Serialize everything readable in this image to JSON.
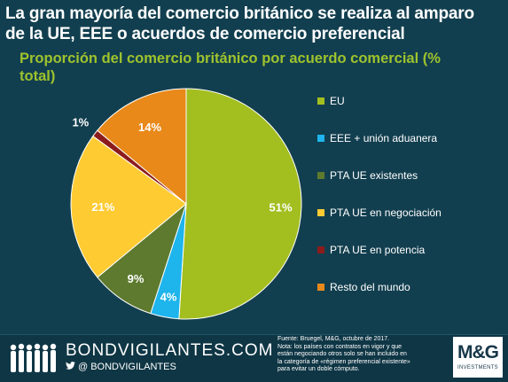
{
  "header": {
    "title_line1": "La gran mayoría del comercio británico se realiza al amparo",
    "title_line2": "de la UE, EEE o acuerdos de comercio preferencial",
    "subtitle_line1": "Proporción del comercio británico por acuerdo comercial (%",
    "subtitle_line2": "total)"
  },
  "chart_data": {
    "type": "pie",
    "title": "Proporción del comercio británico por acuerdo comercial (% total)",
    "categories": [
      "EU",
      "EEE + unión aduanera",
      "PTA UE existentes",
      "PTA UE en negociación",
      "PTA UE en potencia",
      "Resto del mundo"
    ],
    "values": [
      51,
      4,
      9,
      21,
      1,
      14
    ],
    "value_labels": [
      "51%",
      "4%",
      "9%",
      "21%",
      "1%",
      "14%"
    ],
    "colors": [
      "#a3be1f",
      "#1eb4ec",
      "#5d7a2e",
      "#fecb33",
      "#8c1c1c",
      "#e8891a"
    ],
    "start_angle_deg": 0,
    "direction": "clockwise",
    "legend_placement": "right"
  },
  "footer": {
    "brand": "BONDVIGILANTES.COM",
    "handle": "@ BONDVIGILANTES",
    "twitter_icon": "twitter-icon",
    "source_line1": "Fuente: Bruegel, M&G, octubre de 2017.",
    "source_line2": "Nota: los países con contratos en vigor y que",
    "source_line3": "están negociando otros solo se han incluido en",
    "source_line4": "la categoría de «régimen preferencial existente»",
    "source_line5": "para evitar un doble cómputo.",
    "logo_main": "M&G",
    "logo_sub": "INVESTMENTS"
  }
}
